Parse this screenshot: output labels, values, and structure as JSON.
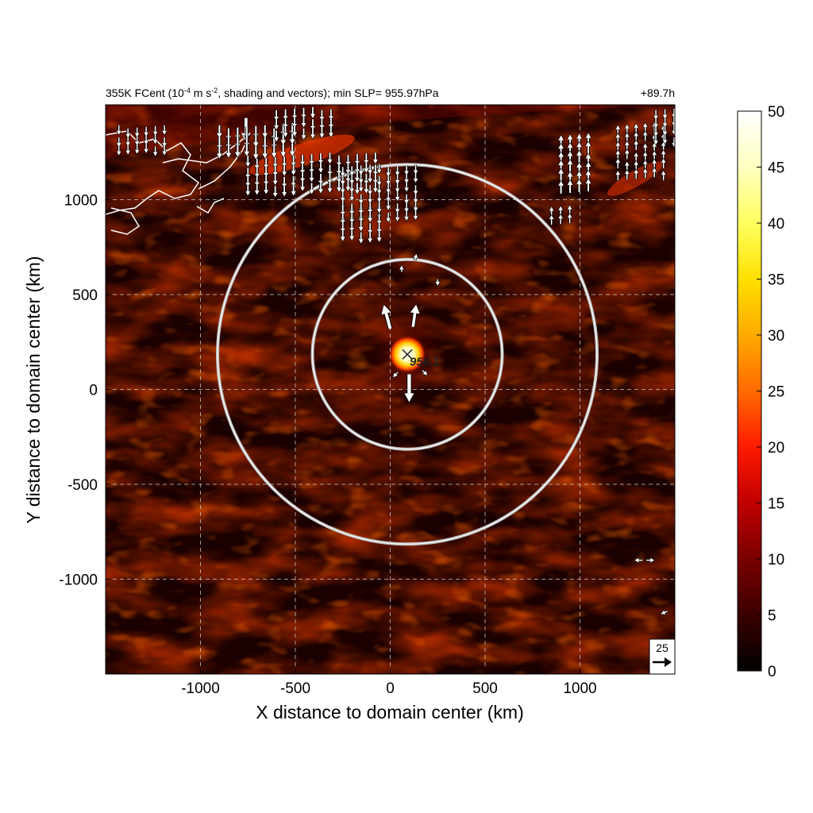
{
  "chart_data": {
    "type": "heatmap",
    "title_main": "355K FCent (10",
    "title_exp1": "-4",
    "title_mid": " m s",
    "title_exp2": "-2",
    "title_rest": ", shading and vectors); min SLP= 955.97hPa",
    "time_label": "+89.7h",
    "xlabel": "X distance to domain center (km)",
    "ylabel": "Y distance to domain center (km)",
    "xlim": [
      -1500,
      1500
    ],
    "ylim": [
      -1500,
      1500
    ],
    "x_ticks": [
      -1000,
      -500,
      0,
      500,
      1000
    ],
    "x_tick_labels": [
      "-1000",
      "-500",
      "0",
      "500",
      "1000"
    ],
    "y_ticks": [
      -1000,
      -500,
      0,
      500,
      1000
    ],
    "y_tick_labels": [
      "-1000",
      "-500",
      "0",
      "500",
      "1000"
    ],
    "grid": true,
    "colorbar": {
      "min": 0,
      "max": 50,
      "ticks": [
        0,
        5,
        10,
        15,
        20,
        25,
        30,
        35,
        40,
        45,
        50
      ],
      "tick_labels": [
        "0",
        "5",
        "10",
        "15",
        "20",
        "25",
        "30",
        "35",
        "40",
        "45",
        "50"
      ],
      "colors": [
        "#000000",
        "#3a0000",
        "#7a0000",
        "#c00000",
        "#ff1a00",
        "#ff6a00",
        "#ffaa00",
        "#ffe000",
        "#ffff60",
        "#ffffc0",
        "#ffffff"
      ]
    },
    "storm_center": {
      "x": 90,
      "y": 185
    },
    "storm_label": "956.1",
    "rings": [
      {
        "center_x": 90,
        "center_y": 185,
        "radius_km": 500
      },
      {
        "center_x": 90,
        "center_y": 185,
        "radius_km": 1000
      }
    ],
    "reference_vector": {
      "label": "25",
      "magnitude": 25
    },
    "vectors": [
      {
        "x": 0,
        "y": 320,
        "u": -8,
        "v": 30
      },
      {
        "x": 120,
        "y": 330,
        "u": 4,
        "v": 28
      },
      {
        "x": 100,
        "y": 80,
        "u": 0,
        "v": -35
      },
      {
        "x": 40,
        "y": 90,
        "u": -6,
        "v": -6
      },
      {
        "x": 170,
        "y": 100,
        "u": 6,
        "v": -6
      },
      {
        "x": 130,
        "y": 680,
        "u": 2,
        "v": 8
      },
      {
        "x": 60,
        "y": 620,
        "u": 0,
        "v": 8
      },
      {
        "x": 250,
        "y": 580,
        "u": 0,
        "v": -8
      },
      {
        "x": -760,
        "y": 1430,
        "u": 0,
        "v": -30
      },
      {
        "x": 1330,
        "y": -900,
        "u": -10,
        "v": 0
      },
      {
        "x": 1350,
        "y": -900,
        "u": 10,
        "v": 0
      },
      {
        "x": 1460,
        "y": -1170,
        "u": -8,
        "v": -3
      }
    ],
    "vector_field_bands": [
      {
        "x0": -1430,
        "x1": -1180,
        "y0": 1400,
        "y1": 1300,
        "dir": "down"
      },
      {
        "x0": -900,
        "x1": -500,
        "y0": 1400,
        "y1": 1270,
        "dir": "down"
      },
      {
        "x0": -750,
        "x1": -50,
        "y0": 1240,
        "y1": 1070,
        "dir": "down"
      },
      {
        "x0": -250,
        "x1": 150,
        "y0": 1180,
        "y1": 900,
        "dir": "down"
      },
      {
        "x0": -250,
        "x1": -50,
        "y0": 980,
        "y1": 800,
        "dir": "down"
      },
      {
        "x0": -600,
        "x1": -300,
        "y0": 1480,
        "y1": 1380,
        "dir": "down"
      },
      {
        "x0": 900,
        "x1": 1050,
        "y0": 1280,
        "y1": 1020,
        "dir": "up"
      },
      {
        "x0": 1200,
        "x1": 1450,
        "y0": 1350,
        "y1": 1100,
        "dir": "up"
      },
      {
        "x0": 1400,
        "x1": 1500,
        "y0": 1480,
        "y1": 1300,
        "dir": "down"
      },
      {
        "x0": 850,
        "x1": 950,
        "y0": 920,
        "y1": 860,
        "dir": "up"
      }
    ]
  }
}
